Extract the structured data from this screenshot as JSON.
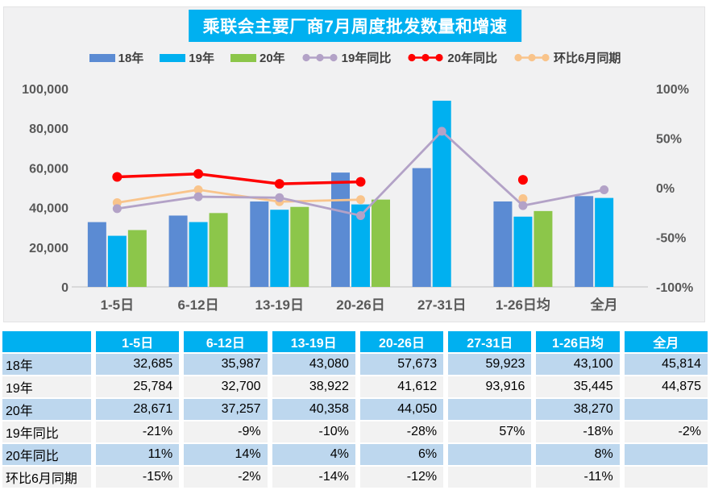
{
  "title": "乘联会主要厂商7月周度批发数量和增速",
  "colors": {
    "accent_cyan": "#00B0F0",
    "bar_18": "#5B8BD3",
    "bar_19": "#00B0F0",
    "bar_20": "#8CC64A",
    "line_19_yoy": "#B3A2C7",
    "line_20_yoy": "#FF0000",
    "line_mom_june": "#F9C48B",
    "panel_bg": "#F1F1F2",
    "axis_text": "#595959",
    "table_row_blue": "#BDD7EE",
    "table_row_gray": "#F2F2F2"
  },
  "chart_data": {
    "type": "bar+line combo",
    "title": "乘联会主要厂商7月周度批发数量和增速",
    "categories": [
      "1-5日",
      "6-12日",
      "13-19日",
      "20-26日",
      "27-31日",
      "1-26日均",
      "全月"
    ],
    "bar_series": [
      {
        "name": "18年",
        "color": "#5B8BD3",
        "values": [
          32685,
          35987,
          43080,
          57673,
          59923,
          43100,
          45814
        ]
      },
      {
        "name": "19年",
        "color": "#00B0F0",
        "values": [
          25784,
          32700,
          38922,
          41612,
          93916,
          35445,
          44875
        ]
      },
      {
        "name": "20年",
        "color": "#8CC64A",
        "values": [
          28671,
          37257,
          40358,
          44050,
          null,
          38270,
          null
        ]
      }
    ],
    "line_series": [
      {
        "name": "19年同比",
        "color": "#B3A2C7",
        "values_pct": [
          -21,
          -9,
          -10,
          -28,
          57,
          -18,
          -2
        ]
      },
      {
        "name": "20年同比",
        "color": "#FF0000",
        "values_pct": [
          11,
          14,
          4,
          6,
          null,
          8,
          null
        ]
      },
      {
        "name": "环比6月同期",
        "color": "#F9C48B",
        "values_pct": [
          -15,
          -2,
          -14,
          -12,
          null,
          -11,
          null
        ]
      }
    ],
    "left_axis": {
      "min": 0,
      "max": 100000,
      "tick_values": [
        0,
        20000,
        40000,
        60000,
        80000,
        100000
      ],
      "tick_labels": [
        "0",
        "20,000",
        "40,000",
        "60,000",
        "80,000",
        "100,000"
      ]
    },
    "right_axis": {
      "min": -100,
      "max": 100,
      "tick_values": [
        -100,
        -50,
        0,
        50,
        100
      ],
      "tick_labels": [
        "-100%",
        "-50%",
        "0%",
        "50%",
        "100%"
      ]
    },
    "grid": false,
    "legend_position": "top"
  },
  "table": {
    "header": [
      "",
      "1-5日",
      "6-12日",
      "13-19日",
      "20-26日",
      "27-31日",
      "1-26日均",
      "全月"
    ],
    "rows": [
      {
        "label": "18年",
        "values": [
          "32,685",
          "35,987",
          "43,080",
          "57,673",
          "59,923",
          "43,100",
          "45,814"
        ]
      },
      {
        "label": "19年",
        "values": [
          "25,784",
          "32,700",
          "38,922",
          "41,612",
          "93,916",
          "35,445",
          "44,875"
        ]
      },
      {
        "label": "20年",
        "values": [
          "28,671",
          "37,257",
          "40,358",
          "44,050",
          "",
          "38,270",
          ""
        ]
      },
      {
        "label": "19年同比",
        "values": [
          "-21%",
          "-9%",
          "-10%",
          "-28%",
          "57%",
          "-18%",
          "-2%"
        ]
      },
      {
        "label": "20年同比",
        "values": [
          "11%",
          "14%",
          "4%",
          "6%",
          "",
          "8%",
          ""
        ]
      },
      {
        "label": "环比6月同期",
        "values": [
          "-15%",
          "-2%",
          "-14%",
          "-12%",
          "",
          "-11%",
          ""
        ]
      }
    ]
  }
}
